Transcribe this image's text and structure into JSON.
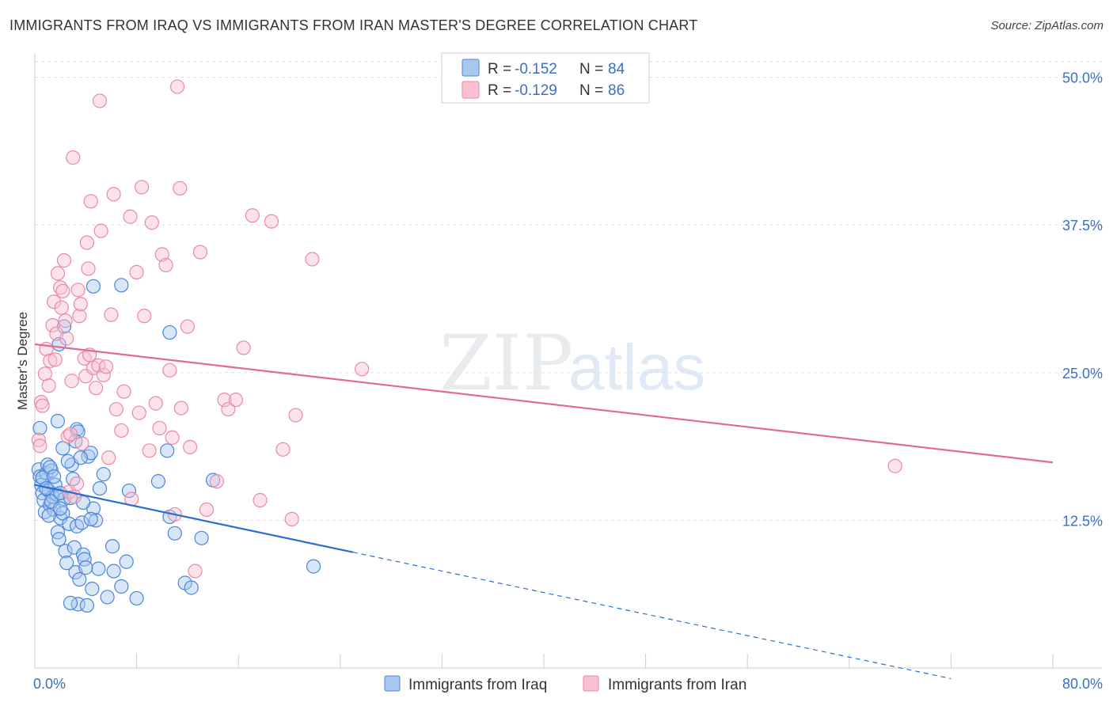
{
  "header": {
    "title": "IMMIGRANTS FROM IRAQ VS IMMIGRANTS FROM IRAN MASTER'S DEGREE CORRELATION CHART",
    "source": "Source: ZipAtlas.com"
  },
  "watermark": {
    "zip": "ZIP",
    "atlas": "atlas"
  },
  "colors": {
    "iraq_fill": "#a8c8f0",
    "iraq_stroke": "#4a86d8",
    "iraq_line": "#2a6fd0",
    "iran_fill": "#f8c0d0",
    "iran_stroke": "#e88aa6",
    "iran_line": "#e06a92",
    "axis_text": "#3a6fc4",
    "grid": "#dddddd"
  },
  "legend_box": {
    "rows": [
      {
        "r_label": "R =",
        "r_value": "-0.152",
        "n_label": "N =",
        "n_value": "84"
      },
      {
        "r_label": "R =",
        "r_value": "-0.129",
        "n_label": "N =",
        "n_value": "86"
      }
    ]
  },
  "chart_data": {
    "type": "scatter",
    "title": "IMMIGRANTS FROM IRAQ VS IMMIGRANTS FROM IRAN MASTER'S DEGREE CORRELATION CHART",
    "xlabel": "",
    "ylabel": "Master's Degree",
    "xlim": [
      0,
      80
    ],
    "ylim": [
      0,
      51
    ],
    "x_tick_labels": [
      "0.0%",
      "80.0%"
    ],
    "y_ticks": [
      {
        "value": 12.5,
        "label": "12.5%"
      },
      {
        "value": 25.0,
        "label": "25.0%"
      },
      {
        "value": 37.5,
        "label": "37.5%"
      },
      {
        "value": 50.0,
        "label": "50.0%"
      }
    ],
    "legend_position": "bottom-center",
    "series": [
      {
        "name": "Immigrants from Iraq",
        "r": -0.152,
        "n": 84,
        "trend": {
          "x0": 0,
          "y0": 15.5,
          "x1": 25,
          "y1": 9.8,
          "dashed_to_x": 72,
          "dashed_to_y": -0.9
        },
        "points": [
          [
            0.3,
            16.8
          ],
          [
            0.4,
            16.2
          ],
          [
            0.5,
            15.5
          ],
          [
            0.6,
            14.8
          ],
          [
            0.7,
            14.2
          ],
          [
            0.8,
            13.2
          ],
          [
            0.9,
            16.5
          ],
          [
            1.0,
            17.2
          ],
          [
            1.1,
            15.0
          ],
          [
            1.2,
            13.8
          ],
          [
            1.3,
            16.7
          ],
          [
            1.4,
            14.5
          ],
          [
            1.5,
            13.4
          ],
          [
            1.6,
            15.5
          ],
          [
            1.7,
            14.7
          ],
          [
            1.8,
            11.5
          ],
          [
            1.9,
            10.9
          ],
          [
            2.0,
            12.7
          ],
          [
            2.2,
            13.1
          ],
          [
            2.3,
            14.3
          ],
          [
            2.4,
            9.9
          ],
          [
            2.5,
            8.9
          ],
          [
            2.7,
            12.2
          ],
          [
            2.9,
            17.2
          ],
          [
            3.1,
            10.2
          ],
          [
            3.2,
            8.1
          ],
          [
            3.3,
            12.0
          ],
          [
            3.5,
            7.5
          ],
          [
            3.7,
            12.3
          ],
          [
            3.8,
            9.6
          ],
          [
            3.9,
            9.2
          ],
          [
            4.2,
            17.9
          ],
          [
            4.4,
            18.2
          ],
          [
            4.6,
            13.5
          ],
          [
            4.8,
            12.5
          ],
          [
            5.1,
            15.2
          ],
          [
            5.4,
            16.4
          ],
          [
            5.7,
            6.0
          ],
          [
            6.1,
            10.3
          ],
          [
            6.8,
            6.9
          ],
          [
            7.2,
            9.0
          ],
          [
            7.4,
            15.0
          ],
          [
            8.0,
            5.9
          ],
          [
            9.7,
            15.8
          ],
          [
            10.6,
            12.8
          ],
          [
            11.0,
            11.4
          ],
          [
            13.1,
            11.0
          ],
          [
            14.0,
            15.9
          ],
          [
            11.8,
            7.2
          ],
          [
            12.3,
            6.8
          ],
          [
            21.9,
            8.6
          ],
          [
            3.0,
            16.0
          ],
          [
            0.4,
            20.3
          ],
          [
            1.8,
            20.9
          ],
          [
            3.3,
            20.2
          ],
          [
            3.4,
            20.0
          ],
          [
            3.2,
            19.2
          ],
          [
            3.6,
            17.8
          ],
          [
            1.9,
            27.4
          ],
          [
            2.3,
            28.9
          ],
          [
            4.6,
            32.3
          ],
          [
            6.8,
            32.4
          ],
          [
            10.6,
            28.4
          ],
          [
            10.4,
            18.4
          ],
          [
            2.2,
            18.6
          ],
          [
            1.2,
            17.0
          ],
          [
            3.4,
            5.4
          ],
          [
            2.8,
            5.5
          ],
          [
            4.1,
            5.3
          ],
          [
            4.5,
            6.7
          ],
          [
            2.6,
            17.5
          ],
          [
            1.3,
            14.1
          ],
          [
            0.6,
            16.1
          ],
          [
            2.0,
            14.8
          ],
          [
            2.8,
            14.4
          ],
          [
            3.8,
            14.0
          ],
          [
            4.4,
            12.6
          ],
          [
            1.5,
            16.2
          ],
          [
            5.0,
            8.4
          ],
          [
            6.2,
            8.2
          ],
          [
            0.9,
            15.2
          ],
          [
            1.1,
            12.9
          ],
          [
            2.0,
            13.5
          ],
          [
            4.0,
            8.5
          ]
        ]
      },
      {
        "name": "Immigrants from Iran",
        "r": -0.129,
        "n": 86,
        "trend": {
          "x0": 0,
          "y0": 27.4,
          "x1": 80,
          "y1": 17.4
        },
        "points": [
          [
            0.3,
            19.3
          ],
          [
            0.4,
            18.8
          ],
          [
            0.5,
            22.5
          ],
          [
            0.6,
            22.2
          ],
          [
            0.8,
            24.9
          ],
          [
            0.9,
            27.0
          ],
          [
            1.1,
            23.9
          ],
          [
            1.2,
            26.0
          ],
          [
            1.4,
            29.0
          ],
          [
            1.5,
            31.0
          ],
          [
            1.6,
            26.1
          ],
          [
            1.7,
            28.3
          ],
          [
            1.8,
            33.4
          ],
          [
            2.0,
            32.2
          ],
          [
            2.1,
            30.5
          ],
          [
            2.2,
            31.9
          ],
          [
            2.3,
            34.5
          ],
          [
            2.4,
            29.4
          ],
          [
            2.5,
            27.9
          ],
          [
            2.6,
            19.6
          ],
          [
            2.7,
            14.9
          ],
          [
            2.8,
            19.8
          ],
          [
            2.9,
            24.3
          ],
          [
            3.0,
            43.2
          ],
          [
            3.1,
            14.5
          ],
          [
            3.3,
            15.6
          ],
          [
            3.4,
            32.0
          ],
          [
            3.5,
            29.8
          ],
          [
            3.6,
            30.8
          ],
          [
            3.7,
            19.0
          ],
          [
            3.9,
            26.2
          ],
          [
            4.0,
            24.7
          ],
          [
            4.1,
            36.0
          ],
          [
            4.2,
            33.8
          ],
          [
            4.3,
            26.5
          ],
          [
            4.4,
            39.5
          ],
          [
            4.6,
            25.4
          ],
          [
            4.8,
            23.7
          ],
          [
            5.0,
            25.6
          ],
          [
            5.1,
            48.0
          ],
          [
            5.2,
            37.0
          ],
          [
            5.4,
            24.8
          ],
          [
            5.6,
            25.5
          ],
          [
            5.8,
            17.8
          ],
          [
            6.0,
            29.9
          ],
          [
            6.2,
            40.1
          ],
          [
            6.4,
            21.9
          ],
          [
            6.8,
            20.1
          ],
          [
            7.0,
            23.4
          ],
          [
            7.5,
            38.2
          ],
          [
            7.6,
            14.3
          ],
          [
            8.0,
            33.5
          ],
          [
            8.2,
            21.6
          ],
          [
            8.4,
            40.7
          ],
          [
            8.6,
            29.8
          ],
          [
            9.0,
            18.4
          ],
          [
            9.2,
            37.7
          ],
          [
            9.5,
            22.4
          ],
          [
            9.8,
            20.3
          ],
          [
            10.0,
            35.0
          ],
          [
            10.3,
            34.1
          ],
          [
            10.6,
            25.2
          ],
          [
            10.8,
            19.5
          ],
          [
            11.2,
            49.2
          ],
          [
            11.0,
            13.0
          ],
          [
            11.4,
            40.6
          ],
          [
            11.5,
            22.0
          ],
          [
            12.0,
            28.9
          ],
          [
            12.6,
            8.2
          ],
          [
            13.0,
            35.2
          ],
          [
            13.5,
            13.4
          ],
          [
            14.3,
            15.8
          ],
          [
            14.9,
            22.7
          ],
          [
            15.2,
            21.9
          ],
          [
            15.8,
            22.7
          ],
          [
            16.4,
            27.1
          ],
          [
            17.1,
            38.3
          ],
          [
            17.7,
            14.2
          ],
          [
            18.6,
            37.8
          ],
          [
            19.5,
            18.5
          ],
          [
            20.2,
            12.6
          ],
          [
            20.5,
            21.4
          ],
          [
            21.8,
            34.6
          ],
          [
            25.7,
            25.3
          ],
          [
            67.6,
            17.1
          ],
          [
            12.2,
            18.7
          ]
        ]
      }
    ]
  },
  "bottom_legend": {
    "items": [
      {
        "label": "Immigrants from Iraq"
      },
      {
        "label": "Immigrants from Iran"
      }
    ]
  }
}
